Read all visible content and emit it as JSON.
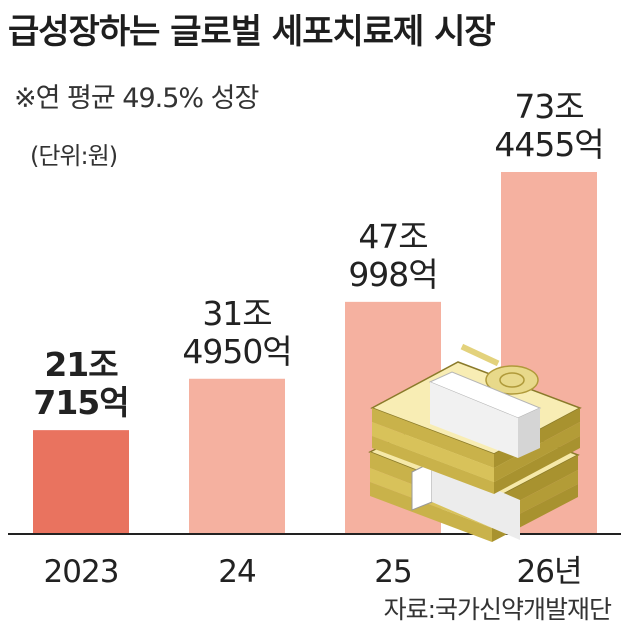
{
  "header": {
    "title": "급성장하는 글로벌 세포치료제 시장",
    "subtitle": "※연 평균 49.5% 성장",
    "unit": "(단위:원)"
  },
  "footer": {
    "source": "자료:국가신약개발재단"
  },
  "colors": {
    "highlight_bar": "#e9735f",
    "bar": "#f5b1a0",
    "axis": "#222222"
  },
  "chart_data": {
    "type": "bar",
    "categories": [
      "2023",
      "24",
      "25",
      "26년"
    ],
    "values": [
      210715,
      314950,
      470998,
      734455
    ],
    "value_unit": "억원",
    "data_labels": [
      [
        "21조",
        "715억"
      ],
      [
        "31조",
        "4950억"
      ],
      [
        "47조",
        "998억"
      ],
      [
        "73조",
        "4455억"
      ]
    ],
    "highlight_index": 0,
    "xlabel": "",
    "ylabel": "",
    "grid": false,
    "legend": "none",
    "decoration": "money-stack-icon"
  }
}
